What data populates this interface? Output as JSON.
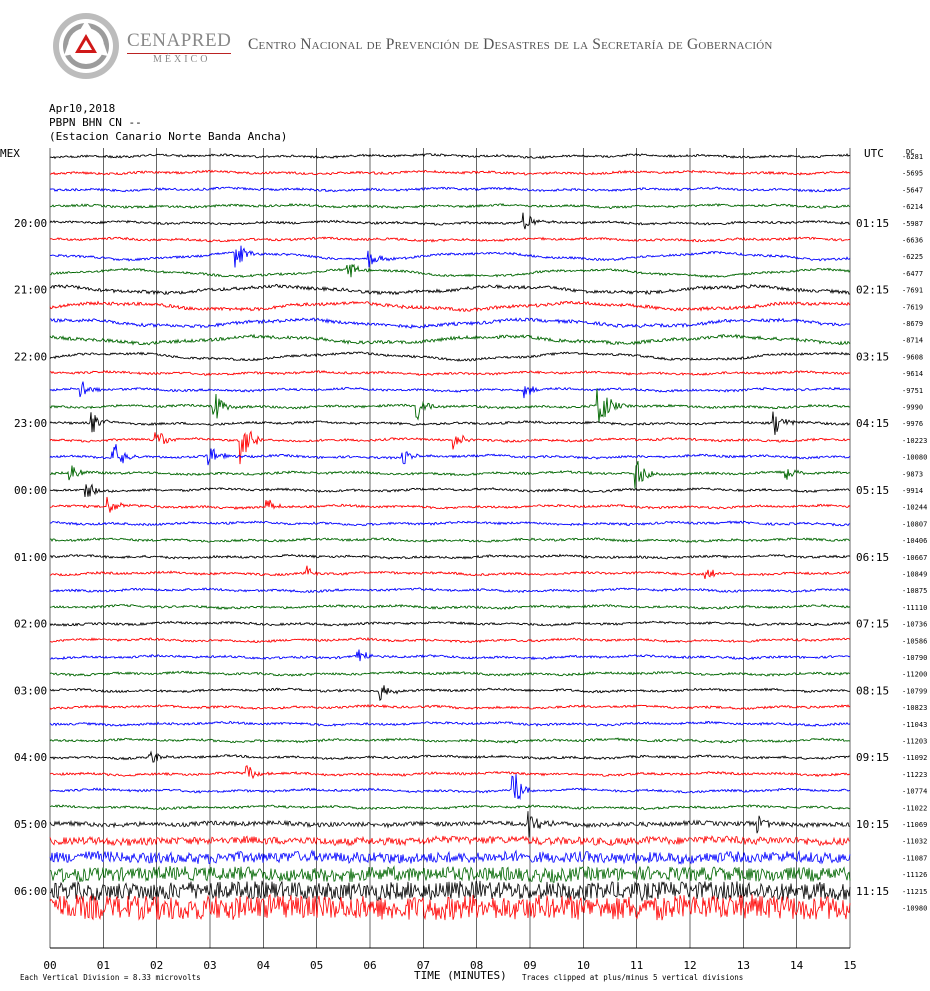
{
  "header": {
    "brand_name": "CENAPRED",
    "brand_sub": "MÉXICO",
    "agency": "Centro Nacional de Prevención de Desastres de la Secretaría de Gobernación"
  },
  "info": {
    "date": "Apr10,2018",
    "channel": "PBPN BHN CN --",
    "station": "(Estacion Canario Norte Banda Ancha)"
  },
  "colors": {
    "trace_cycle": [
      "#000000",
      "#ff0000",
      "#0000ff",
      "#006600"
    ],
    "grid": "#000000"
  },
  "chart_data": {
    "type": "line",
    "left_axis_label": "MEX",
    "right_axis_label": "UTC",
    "dc_label": "DC",
    "left_hour_labels": [
      "20:00",
      "21:00",
      "22:00",
      "23:00",
      "00:00",
      "01:00",
      "02:00",
      "03:00",
      "04:00",
      "05:00",
      "06:00"
    ],
    "right_hour_labels": [
      "01:15",
      "02:15",
      "03:15",
      "04:15",
      "05:15",
      "06:15",
      "07:15",
      "08:15",
      "09:15",
      "10:15",
      "11:15"
    ],
    "x_ticks": [
      "00",
      "01",
      "02",
      "03",
      "04",
      "05",
      "06",
      "07",
      "08",
      "09",
      "10",
      "11",
      "12",
      "13",
      "14",
      "15"
    ],
    "xlabel": "TIME (MINUTES)",
    "footer_left": "Each Vertical Division =   8.33 microvolts",
    "footer_right": "Traces clipped at plus/minus 5 vertical divisions",
    "xlim": [
      0,
      15
    ],
    "minutes_per_line": 15,
    "dc_offsets": [
      -6281,
      -5695,
      -5647,
      -6214,
      -5987,
      -6636,
      -6225,
      -6477,
      -7691,
      -7619,
      -8679,
      -8714,
      -9608,
      -9614,
      -9751,
      -9990,
      -9976,
      -10223,
      -10080,
      -9873,
      -9914,
      -10244,
      -10807,
      -10406,
      -10667,
      -10849,
      -10875,
      -11110,
      -10736,
      -10586,
      -10790,
      -11200,
      -10799,
      -10823,
      -11043,
      -11203,
      -11092,
      -11223,
      -10774,
      -11022,
      -11069,
      -11032,
      -11087,
      -11126,
      -11215,
      -10980
    ],
    "events": [
      {
        "line": 6,
        "minute": 3.5,
        "amp": 1.6
      },
      {
        "line": 6,
        "minute": 6.0,
        "amp": 1.0
      },
      {
        "line": 4,
        "minute": 8.9,
        "amp": 1.0
      },
      {
        "line": 7,
        "minute": 5.6,
        "amp": 1.2
      },
      {
        "line": 14,
        "minute": 0.6,
        "amp": 1.0
      },
      {
        "line": 14,
        "minute": 8.9,
        "amp": 0.8
      },
      {
        "line": 15,
        "minute": 3.1,
        "amp": 1.6
      },
      {
        "line": 15,
        "minute": 6.9,
        "amp": 1.6
      },
      {
        "line": 15,
        "minute": 10.3,
        "amp": 3.0
      },
      {
        "line": 16,
        "minute": 0.8,
        "amp": 1.2
      },
      {
        "line": 16,
        "minute": 13.6,
        "amp": 1.4
      },
      {
        "line": 17,
        "minute": 2.0,
        "amp": 1.2
      },
      {
        "line": 17,
        "minute": 3.6,
        "amp": 3.5
      },
      {
        "line": 17,
        "minute": 7.6,
        "amp": 1.0
      },
      {
        "line": 18,
        "minute": 1.2,
        "amp": 2.0
      },
      {
        "line": 18,
        "minute": 3.0,
        "amp": 1.2
      },
      {
        "line": 18,
        "minute": 6.6,
        "amp": 1.0
      },
      {
        "line": 19,
        "minute": 0.4,
        "amp": 1.0
      },
      {
        "line": 19,
        "minute": 11.0,
        "amp": 2.0
      },
      {
        "line": 19,
        "minute": 13.8,
        "amp": 1.0
      },
      {
        "line": 20,
        "minute": 0.7,
        "amp": 1.0
      },
      {
        "line": 21,
        "minute": 1.1,
        "amp": 1.0
      },
      {
        "line": 21,
        "minute": 4.1,
        "amp": 0.9
      },
      {
        "line": 25,
        "minute": 4.8,
        "amp": 1.0
      },
      {
        "line": 25,
        "minute": 12.3,
        "amp": 0.8
      },
      {
        "line": 30,
        "minute": 5.8,
        "amp": 0.8
      },
      {
        "line": 32,
        "minute": 6.2,
        "amp": 1.0
      },
      {
        "line": 36,
        "minute": 1.9,
        "amp": 0.8
      },
      {
        "line": 37,
        "minute": 3.7,
        "amp": 0.9
      },
      {
        "line": 38,
        "minute": 8.7,
        "amp": 2.2
      },
      {
        "line": 40,
        "minute": 13.3,
        "amp": 1.0
      },
      {
        "line": 40,
        "minute": 9.0,
        "amp": 1.8
      }
    ]
  }
}
